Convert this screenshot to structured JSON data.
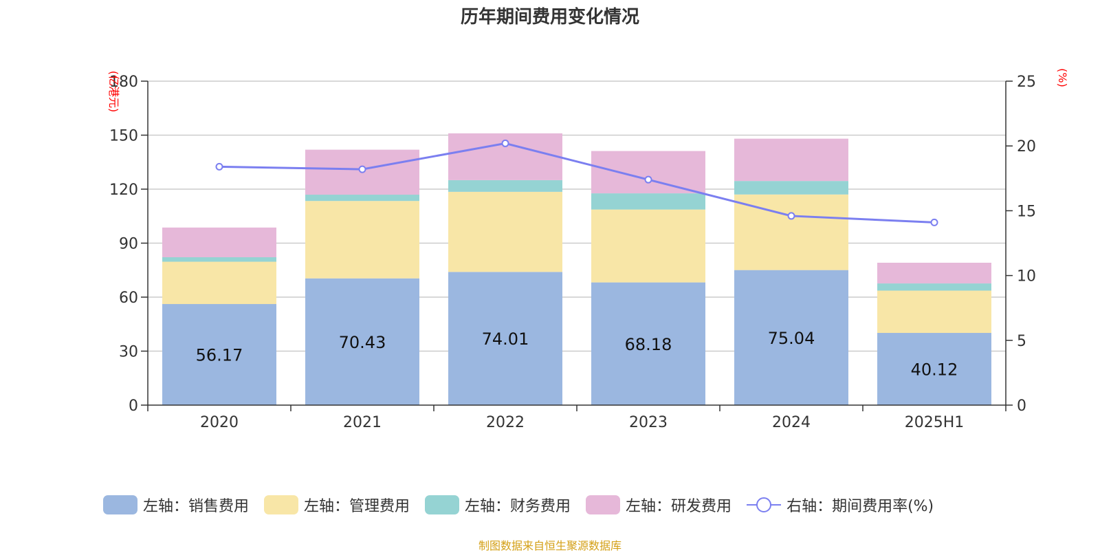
{
  "title": "历年期间费用变化情况",
  "footer": "制图数据来自恒生聚源数据库",
  "colors": {
    "sales": "#9bb7e0",
    "admin": "#f8e6a7",
    "finance": "#95d3d3",
    "rnd": "#e6b8d9",
    "rate_line": "#7b7ff0",
    "axis_unit": "#ff0000",
    "footer": "#d4a017",
    "grid": "#cccccc",
    "text": "#333333"
  },
  "legend": [
    {
      "label": "左轴：销售费用",
      "color_key": "sales",
      "kind": "box"
    },
    {
      "label": "左轴：管理费用",
      "color_key": "admin",
      "kind": "box"
    },
    {
      "label": "左轴：财务费用",
      "color_key": "finance",
      "kind": "box"
    },
    {
      "label": "左轴：研发费用",
      "color_key": "rnd",
      "kind": "box"
    },
    {
      "label": "右轴：期间费用率(%)",
      "color_key": "rate_line",
      "kind": "line"
    }
  ],
  "chart_data": {
    "type": "bar",
    "stacked": true,
    "categories": [
      "2020",
      "2021",
      "2022",
      "2023",
      "2024",
      "2025H1"
    ],
    "series": [
      {
        "name": "左轴：销售费用",
        "axis": "left",
        "color_key": "sales",
        "values": [
          56.17,
          70.43,
          74.01,
          68.18,
          75.04,
          40.12
        ],
        "show_labels": true
      },
      {
        "name": "左轴：管理费用",
        "axis": "left",
        "color_key": "admin",
        "values": [
          23.5,
          43.0,
          44.5,
          40.5,
          42.0,
          23.5
        ]
      },
      {
        "name": "左轴：财务费用",
        "axis": "left",
        "color_key": "finance",
        "values": [
          2.5,
          3.5,
          6.5,
          9.0,
          7.5,
          4.0
        ]
      },
      {
        "name": "左轴：研发费用",
        "axis": "left",
        "color_key": "rnd",
        "values": [
          16.5,
          25.0,
          26.0,
          23.5,
          23.5,
          11.5
        ]
      },
      {
        "name": "右轴：期间费用率(%)",
        "axis": "right",
        "type": "line",
        "color_key": "rate_line",
        "values": [
          18.4,
          18.2,
          20.2,
          17.4,
          14.6,
          14.1
        ]
      }
    ],
    "left_axis": {
      "unit": "(亿港元)",
      "min": 0,
      "max": 180,
      "ticks": [
        0,
        30,
        60,
        90,
        120,
        150,
        180
      ]
    },
    "right_axis": {
      "unit": "(%)",
      "min": 0,
      "max": 25,
      "ticks": [
        0,
        5,
        10,
        15,
        20,
        25
      ]
    },
    "grid": true,
    "legend_position": "bottom"
  }
}
